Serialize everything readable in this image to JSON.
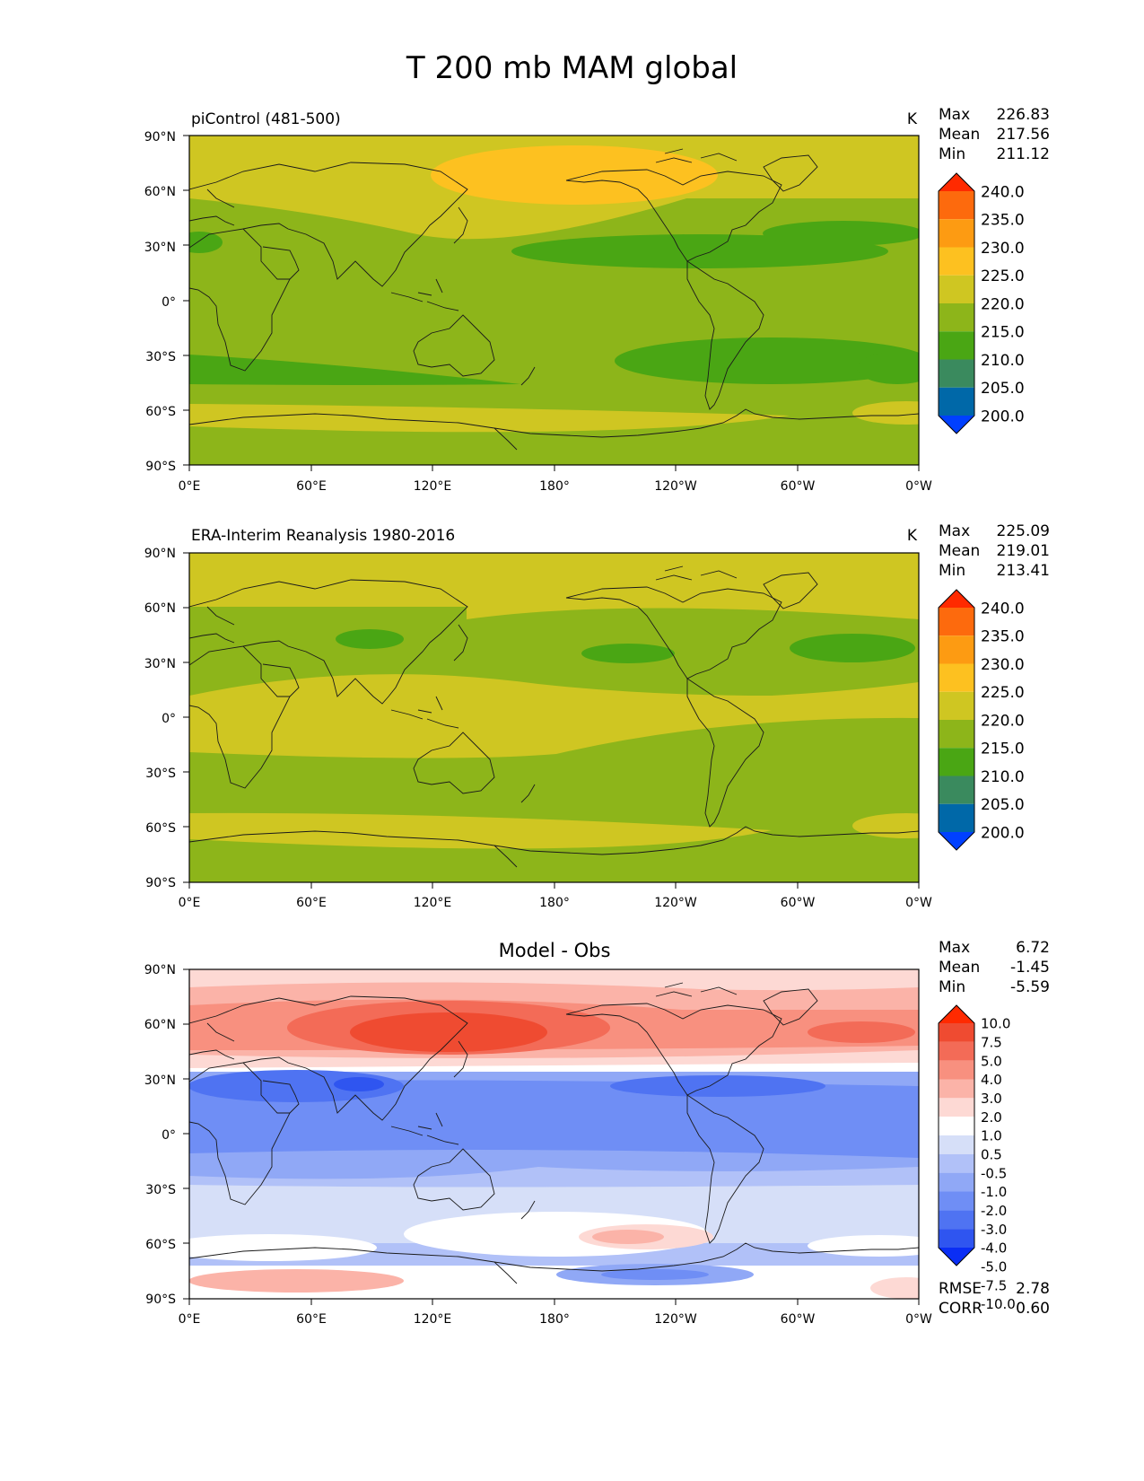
{
  "figure_title": "T 200 mb MAM global",
  "axes": {
    "y_ticks": [
      "90°N",
      "60°N",
      "30°N",
      "0°",
      "30°S",
      "60°S",
      "90°S"
    ],
    "x_ticks": [
      "0°E",
      "60°E",
      "120°E",
      "180°",
      "120°W",
      "60°W",
      "0°W"
    ]
  },
  "colors": {
    "abs": [
      "#0040ff",
      "#0068a8",
      "#3a8a5e",
      "#4aa614",
      "#8db51a",
      "#cfc622",
      "#fdc120",
      "#fd9b12",
      "#fd6a0d",
      "#ff2a00"
    ],
    "diff": [
      "#0a2ef5",
      "#2f55f0",
      "#4f73f2",
      "#6f8ef5",
      "#90a8f6",
      "#b1c1f8",
      "#d6dff8",
      "#ffffff",
      "#fdd9d4",
      "#fbb3a8",
      "#f8907f",
      "#f36b57",
      "#ef4b31",
      "#ff2a00"
    ]
  },
  "panels": [
    {
      "title_left": "piControl (481-500)",
      "title_center": "",
      "units": "K",
      "stats": {
        "max_label": "Max",
        "max": "226.83",
        "mean_label": "Mean",
        "mean": "217.56",
        "min_label": "Min",
        "min": "211.12"
      },
      "colorbar_labels": [
        "240.0",
        "235.0",
        "230.0",
        "225.0",
        "220.0",
        "215.0",
        "210.0",
        "205.0",
        "200.0"
      ]
    },
    {
      "title_left": "ERA-Interim Reanalysis 1980-2016",
      "title_center": "",
      "units": "K",
      "stats": {
        "max_label": "Max",
        "max": "225.09",
        "mean_label": "Mean",
        "mean": "219.01",
        "min_label": "Min",
        "min": "213.41"
      },
      "colorbar_labels": [
        "240.0",
        "235.0",
        "230.0",
        "225.0",
        "220.0",
        "215.0",
        "210.0",
        "205.0",
        "200.0"
      ]
    },
    {
      "title_left": "",
      "title_center": "Model - Obs",
      "units": "",
      "stats": {
        "max_label": "Max",
        "max": "6.72",
        "mean_label": "Mean",
        "mean": "-1.45",
        "min_label": "Min",
        "min": "-5.59"
      },
      "colorbar_labels": [
        "10.0",
        "7.5",
        "5.0",
        "4.0",
        "3.0",
        "2.0",
        "1.0",
        "0.5",
        "-0.5",
        "-1.0",
        "-2.0",
        "-3.0",
        "-4.0",
        "-5.0",
        "-7.5",
        "-10.0"
      ],
      "metrics": {
        "rmse_label": "RMSE",
        "rmse": "2.78",
        "corr_label": "CORR",
        "corr": "0.60"
      }
    }
  ]
}
